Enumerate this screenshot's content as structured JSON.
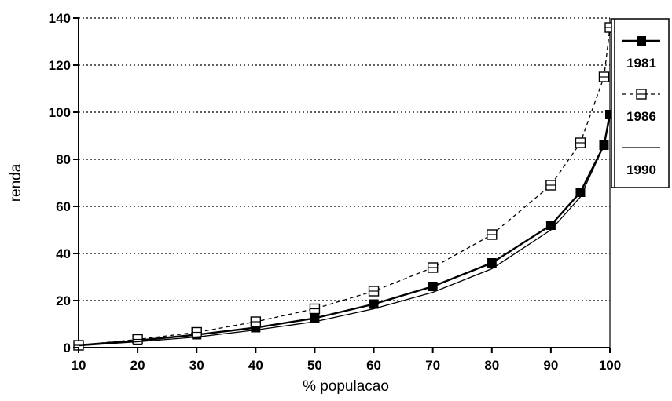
{
  "chart_data": {
    "type": "line",
    "xlabel": "% populacao",
    "ylabel": "renda",
    "xlim": [
      10,
      100
    ],
    "ylim": [
      0,
      140
    ],
    "x_ticks": [
      10,
      20,
      30,
      40,
      50,
      60,
      70,
      80,
      90,
      100
    ],
    "y_ticks": [
      0,
      20,
      40,
      60,
      80,
      100,
      120,
      140
    ],
    "grid": "horizontal dotted",
    "legend_position": "right",
    "series": [
      {
        "name": "1981",
        "marker": "filled-square",
        "line": "solid",
        "x": [
          10,
          20,
          30,
          40,
          50,
          60,
          70,
          80,
          90,
          95,
          99,
          100
        ],
        "y": [
          1,
          3,
          5.5,
          8.5,
          12.5,
          18.5,
          26,
          36,
          52,
          66,
          86,
          99
        ]
      },
      {
        "name": "1986",
        "marker": "open-square",
        "line": "dashed",
        "x": [
          10,
          20,
          30,
          40,
          50,
          60,
          70,
          80,
          90,
          95,
          99,
          100
        ],
        "y": [
          1,
          3.5,
          6.5,
          11,
          16.5,
          24,
          34,
          48,
          69,
          87,
          115,
          136
        ]
      },
      {
        "name": "1990",
        "marker": "none",
        "line": "solid-thin",
        "x": [
          10,
          20,
          30,
          40,
          50,
          60,
          70,
          80,
          90,
          95,
          99,
          100
        ],
        "y": [
          0.8,
          2.5,
          4.5,
          7.5,
          11,
          16.5,
          23.5,
          33.5,
          50,
          64,
          86,
          101
        ]
      }
    ]
  }
}
